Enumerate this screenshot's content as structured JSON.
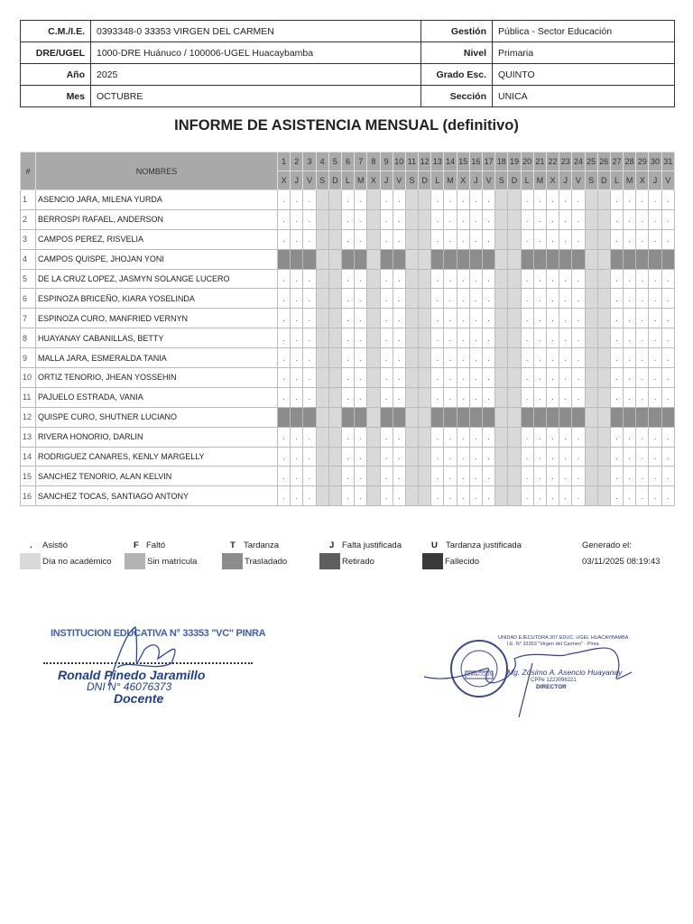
{
  "header": {
    "rows": [
      {
        "label1": "C.M./I.E.",
        "value1": "0393348-0 33353 VIRGEN DEL CARMEN",
        "label2": "Gestión",
        "value2": "Pública - Sector Educación"
      },
      {
        "label1": "DRE/UGEL",
        "value1": "1000-DRE Huánuco / 100006-UGEL Huacaybamba",
        "label2": "Nivel",
        "value2": "Primaria"
      },
      {
        "label1": "Año",
        "value1": "2025",
        "label2": "Grado Esc.",
        "value2": "QUINTO"
      },
      {
        "label1": "Mes",
        "value1": "OCTUBRE",
        "label2": "Sección",
        "value2": "UNICA"
      }
    ]
  },
  "title": "INFORME DE ASISTENCIA MENSUAL (definitivo)",
  "table": {
    "col_num": "#",
    "col_names": "NOMBRES",
    "days": [
      "1",
      "2",
      "3",
      "4",
      "5",
      "6",
      "7",
      "8",
      "9",
      "10",
      "11",
      "12",
      "13",
      "14",
      "15",
      "16",
      "17",
      "18",
      "19",
      "20",
      "21",
      "22",
      "23",
      "24",
      "25",
      "26",
      "27",
      "28",
      "29",
      "30",
      "31"
    ],
    "weekdays": [
      "X",
      "J",
      "V",
      "S",
      "D",
      "L",
      "M",
      "X",
      "J",
      "V",
      "S",
      "D",
      "L",
      "M",
      "X",
      "J",
      "V",
      "S",
      "D",
      "L",
      "M",
      "X",
      "J",
      "V",
      "S",
      "D",
      "L",
      "M",
      "X",
      "J",
      "V"
    ],
    "non_academic_days": [
      4,
      5,
      8,
      11,
      12,
      18,
      19,
      25,
      26
    ],
    "students": [
      {
        "n": "1",
        "name": "ASENCIO JARA, MILENA YURDA",
        "status": "",
        "marks": "...  .. ..  .....  .....  ....."
      },
      {
        "n": "2",
        "name": "BERROSPI RAFAEL, ANDERSON",
        "status": "",
        "marks": "...  .. ..  .....  .....  ....."
      },
      {
        "n": "3",
        "name": "CAMPOS PEREZ, RISVELIA",
        "status": "",
        "marks": "...  .. ..  .....  .....  ....."
      },
      {
        "n": "4",
        "name": "CAMPOS QUISPE, JHOJAN YONI",
        "status": "Trasladado",
        "marks": ""
      },
      {
        "n": "5",
        "name": "DE LA CRUZ LOPEZ, JASMYN SOLANGE LUCERO",
        "status": "",
        "marks": "...  .. ..  .....  .....  ....."
      },
      {
        "n": "6",
        "name": "ESPINOZA BRICEÑO, KIARA YOSELINDA",
        "status": "",
        "marks": "...  .. ..  .....  .....  ....."
      },
      {
        "n": "7",
        "name": "ESPINOZA CURO, MANFRIED VERNYN",
        "status": "",
        "marks": "...  .. ..  .....  .....  ....."
      },
      {
        "n": "8",
        "name": "HUAYANAY CABANILLAS, BETTY",
        "status": "",
        "marks": "...  .. ..  .....  .....  ....."
      },
      {
        "n": "9",
        "name": "MALLA JARA, ESMERALDA TANIA",
        "status": "",
        "marks": "...  .. ..  .....  .....  ....."
      },
      {
        "n": "10",
        "name": "ORTIZ TENORIO, JHEAN YOSSEHIN",
        "status": "",
        "marks": "...  .. ..  .....  .....  ....."
      },
      {
        "n": "11",
        "name": "PAJUELO ESTRADA, VANIA",
        "status": "",
        "marks": "...  .. ..  .....  .....  ....."
      },
      {
        "n": "12",
        "name": "QUISPE CURO, SHUTNER LUCIANO",
        "status": "Trasladado",
        "marks": ""
      },
      {
        "n": "13",
        "name": "RIVERA HONORIO, DARLIN",
        "status": "",
        "marks": "...  .. ..  .....  .....  ....."
      },
      {
        "n": "14",
        "name": "RODRIGUEZ CANARES, KENLY MARGELLY",
        "status": "",
        "marks": "...  .. ..  .....  .....  ....."
      },
      {
        "n": "15",
        "name": "SANCHEZ TENORIO, ALAN KELVIN",
        "status": "",
        "marks": "...  .. ..  .....  .....  ....."
      },
      {
        "n": "16",
        "name": "SANCHEZ TOCAS, SANTIAGO ANTONY",
        "status": "",
        "marks": "...  .. ..  .....  .....  ....."
      }
    ]
  },
  "legend": {
    "codes": [
      {
        "code": ".",
        "label": "Asistió"
      },
      {
        "code": "F",
        "label": "Faltó"
      },
      {
        "code": "T",
        "label": "Tardanza"
      },
      {
        "code": "J",
        "label": "Falta justificada"
      },
      {
        "code": "U",
        "label": "Tardanza justificada"
      }
    ],
    "swatches": [
      {
        "label": "Día no académico",
        "color": "#d9d9d9"
      },
      {
        "label": "Sin matrícula",
        "color": "#b3b3b3"
      },
      {
        "label": "Trasladado",
        "color": "#8c8c8c"
      },
      {
        "label": "Retirado",
        "color": "#5e5e5e"
      },
      {
        "label": "Fallecido",
        "color": "#3a3a3a"
      }
    ],
    "generated_label": "Generado el:",
    "generated_value": "03/11/2025 08:19:43"
  },
  "signatures": {
    "teacher": {
      "institution": "INSTITUCION EDUCATIVA N° 33353 \"VC\" PINRA",
      "name": "Ronald Pinedo Jaramillo",
      "dni": "DNI N° 46076373",
      "role": "Docente"
    },
    "director": {
      "unit": "UNIDAD EJECUTORA 307 EDUC. UGEL HUACAYBAMBA",
      "school": "I.E. N° 33353 \"Virgen del Carmen\" - Pinra",
      "name": "Mg. Zósimo A. Asencio Huayanay",
      "cpp": "CPPe 1223098221",
      "role": "DIRECTOR",
      "seal": "DIRECCIÓN"
    }
  }
}
